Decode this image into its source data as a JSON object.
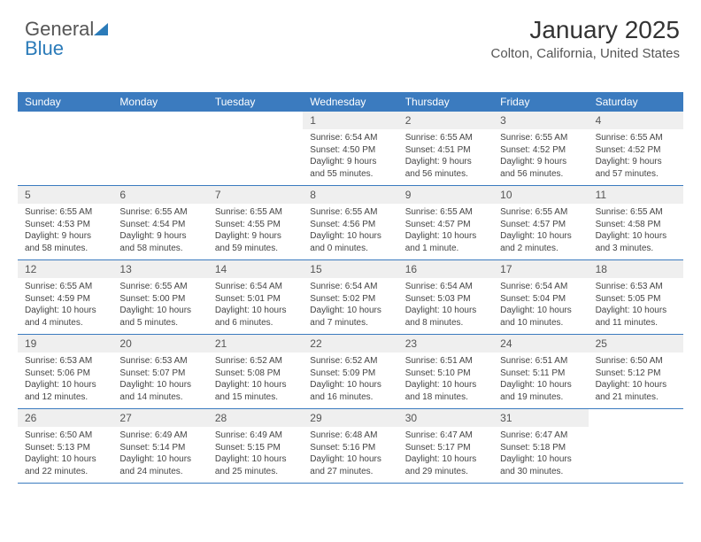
{
  "logo": {
    "text1": "General",
    "text2": "Blue"
  },
  "title": "January 2025",
  "location": "Colton, California, United States",
  "colors": {
    "header_bg": "#3b7bbf",
    "header_text": "#ffffff",
    "date_bg": "#efefef",
    "date_text": "#555555",
    "rule": "#3b7bbf",
    "body_text": "#444444",
    "logo_gray": "#555555",
    "logo_blue": "#2b7bb9"
  },
  "type": "table",
  "day_names": [
    "Sunday",
    "Monday",
    "Tuesday",
    "Wednesday",
    "Thursday",
    "Friday",
    "Saturday"
  ],
  "weeks": [
    [
      null,
      null,
      null,
      {
        "d": "1",
        "sr": "Sunrise: 6:54 AM",
        "ss": "Sunset: 4:50 PM",
        "dl": "Daylight: 9 hours and 55 minutes."
      },
      {
        "d": "2",
        "sr": "Sunrise: 6:55 AM",
        "ss": "Sunset: 4:51 PM",
        "dl": "Daylight: 9 hours and 56 minutes."
      },
      {
        "d": "3",
        "sr": "Sunrise: 6:55 AM",
        "ss": "Sunset: 4:52 PM",
        "dl": "Daylight: 9 hours and 56 minutes."
      },
      {
        "d": "4",
        "sr": "Sunrise: 6:55 AM",
        "ss": "Sunset: 4:52 PM",
        "dl": "Daylight: 9 hours and 57 minutes."
      }
    ],
    [
      {
        "d": "5",
        "sr": "Sunrise: 6:55 AM",
        "ss": "Sunset: 4:53 PM",
        "dl": "Daylight: 9 hours and 58 minutes."
      },
      {
        "d": "6",
        "sr": "Sunrise: 6:55 AM",
        "ss": "Sunset: 4:54 PM",
        "dl": "Daylight: 9 hours and 58 minutes."
      },
      {
        "d": "7",
        "sr": "Sunrise: 6:55 AM",
        "ss": "Sunset: 4:55 PM",
        "dl": "Daylight: 9 hours and 59 minutes."
      },
      {
        "d": "8",
        "sr": "Sunrise: 6:55 AM",
        "ss": "Sunset: 4:56 PM",
        "dl": "Daylight: 10 hours and 0 minutes."
      },
      {
        "d": "9",
        "sr": "Sunrise: 6:55 AM",
        "ss": "Sunset: 4:57 PM",
        "dl": "Daylight: 10 hours and 1 minute."
      },
      {
        "d": "10",
        "sr": "Sunrise: 6:55 AM",
        "ss": "Sunset: 4:57 PM",
        "dl": "Daylight: 10 hours and 2 minutes."
      },
      {
        "d": "11",
        "sr": "Sunrise: 6:55 AM",
        "ss": "Sunset: 4:58 PM",
        "dl": "Daylight: 10 hours and 3 minutes."
      }
    ],
    [
      {
        "d": "12",
        "sr": "Sunrise: 6:55 AM",
        "ss": "Sunset: 4:59 PM",
        "dl": "Daylight: 10 hours and 4 minutes."
      },
      {
        "d": "13",
        "sr": "Sunrise: 6:55 AM",
        "ss": "Sunset: 5:00 PM",
        "dl": "Daylight: 10 hours and 5 minutes."
      },
      {
        "d": "14",
        "sr": "Sunrise: 6:54 AM",
        "ss": "Sunset: 5:01 PM",
        "dl": "Daylight: 10 hours and 6 minutes."
      },
      {
        "d": "15",
        "sr": "Sunrise: 6:54 AM",
        "ss": "Sunset: 5:02 PM",
        "dl": "Daylight: 10 hours and 7 minutes."
      },
      {
        "d": "16",
        "sr": "Sunrise: 6:54 AM",
        "ss": "Sunset: 5:03 PM",
        "dl": "Daylight: 10 hours and 8 minutes."
      },
      {
        "d": "17",
        "sr": "Sunrise: 6:54 AM",
        "ss": "Sunset: 5:04 PM",
        "dl": "Daylight: 10 hours and 10 minutes."
      },
      {
        "d": "18",
        "sr": "Sunrise: 6:53 AM",
        "ss": "Sunset: 5:05 PM",
        "dl": "Daylight: 10 hours and 11 minutes."
      }
    ],
    [
      {
        "d": "19",
        "sr": "Sunrise: 6:53 AM",
        "ss": "Sunset: 5:06 PM",
        "dl": "Daylight: 10 hours and 12 minutes."
      },
      {
        "d": "20",
        "sr": "Sunrise: 6:53 AM",
        "ss": "Sunset: 5:07 PM",
        "dl": "Daylight: 10 hours and 14 minutes."
      },
      {
        "d": "21",
        "sr": "Sunrise: 6:52 AM",
        "ss": "Sunset: 5:08 PM",
        "dl": "Daylight: 10 hours and 15 minutes."
      },
      {
        "d": "22",
        "sr": "Sunrise: 6:52 AM",
        "ss": "Sunset: 5:09 PM",
        "dl": "Daylight: 10 hours and 16 minutes."
      },
      {
        "d": "23",
        "sr": "Sunrise: 6:51 AM",
        "ss": "Sunset: 5:10 PM",
        "dl": "Daylight: 10 hours and 18 minutes."
      },
      {
        "d": "24",
        "sr": "Sunrise: 6:51 AM",
        "ss": "Sunset: 5:11 PM",
        "dl": "Daylight: 10 hours and 19 minutes."
      },
      {
        "d": "25",
        "sr": "Sunrise: 6:50 AM",
        "ss": "Sunset: 5:12 PM",
        "dl": "Daylight: 10 hours and 21 minutes."
      }
    ],
    [
      {
        "d": "26",
        "sr": "Sunrise: 6:50 AM",
        "ss": "Sunset: 5:13 PM",
        "dl": "Daylight: 10 hours and 22 minutes."
      },
      {
        "d": "27",
        "sr": "Sunrise: 6:49 AM",
        "ss": "Sunset: 5:14 PM",
        "dl": "Daylight: 10 hours and 24 minutes."
      },
      {
        "d": "28",
        "sr": "Sunrise: 6:49 AM",
        "ss": "Sunset: 5:15 PM",
        "dl": "Daylight: 10 hours and 25 minutes."
      },
      {
        "d": "29",
        "sr": "Sunrise: 6:48 AM",
        "ss": "Sunset: 5:16 PM",
        "dl": "Daylight: 10 hours and 27 minutes."
      },
      {
        "d": "30",
        "sr": "Sunrise: 6:47 AM",
        "ss": "Sunset: 5:17 PM",
        "dl": "Daylight: 10 hours and 29 minutes."
      },
      {
        "d": "31",
        "sr": "Sunrise: 6:47 AM",
        "ss": "Sunset: 5:18 PM",
        "dl": "Daylight: 10 hours and 30 minutes."
      },
      null
    ]
  ]
}
